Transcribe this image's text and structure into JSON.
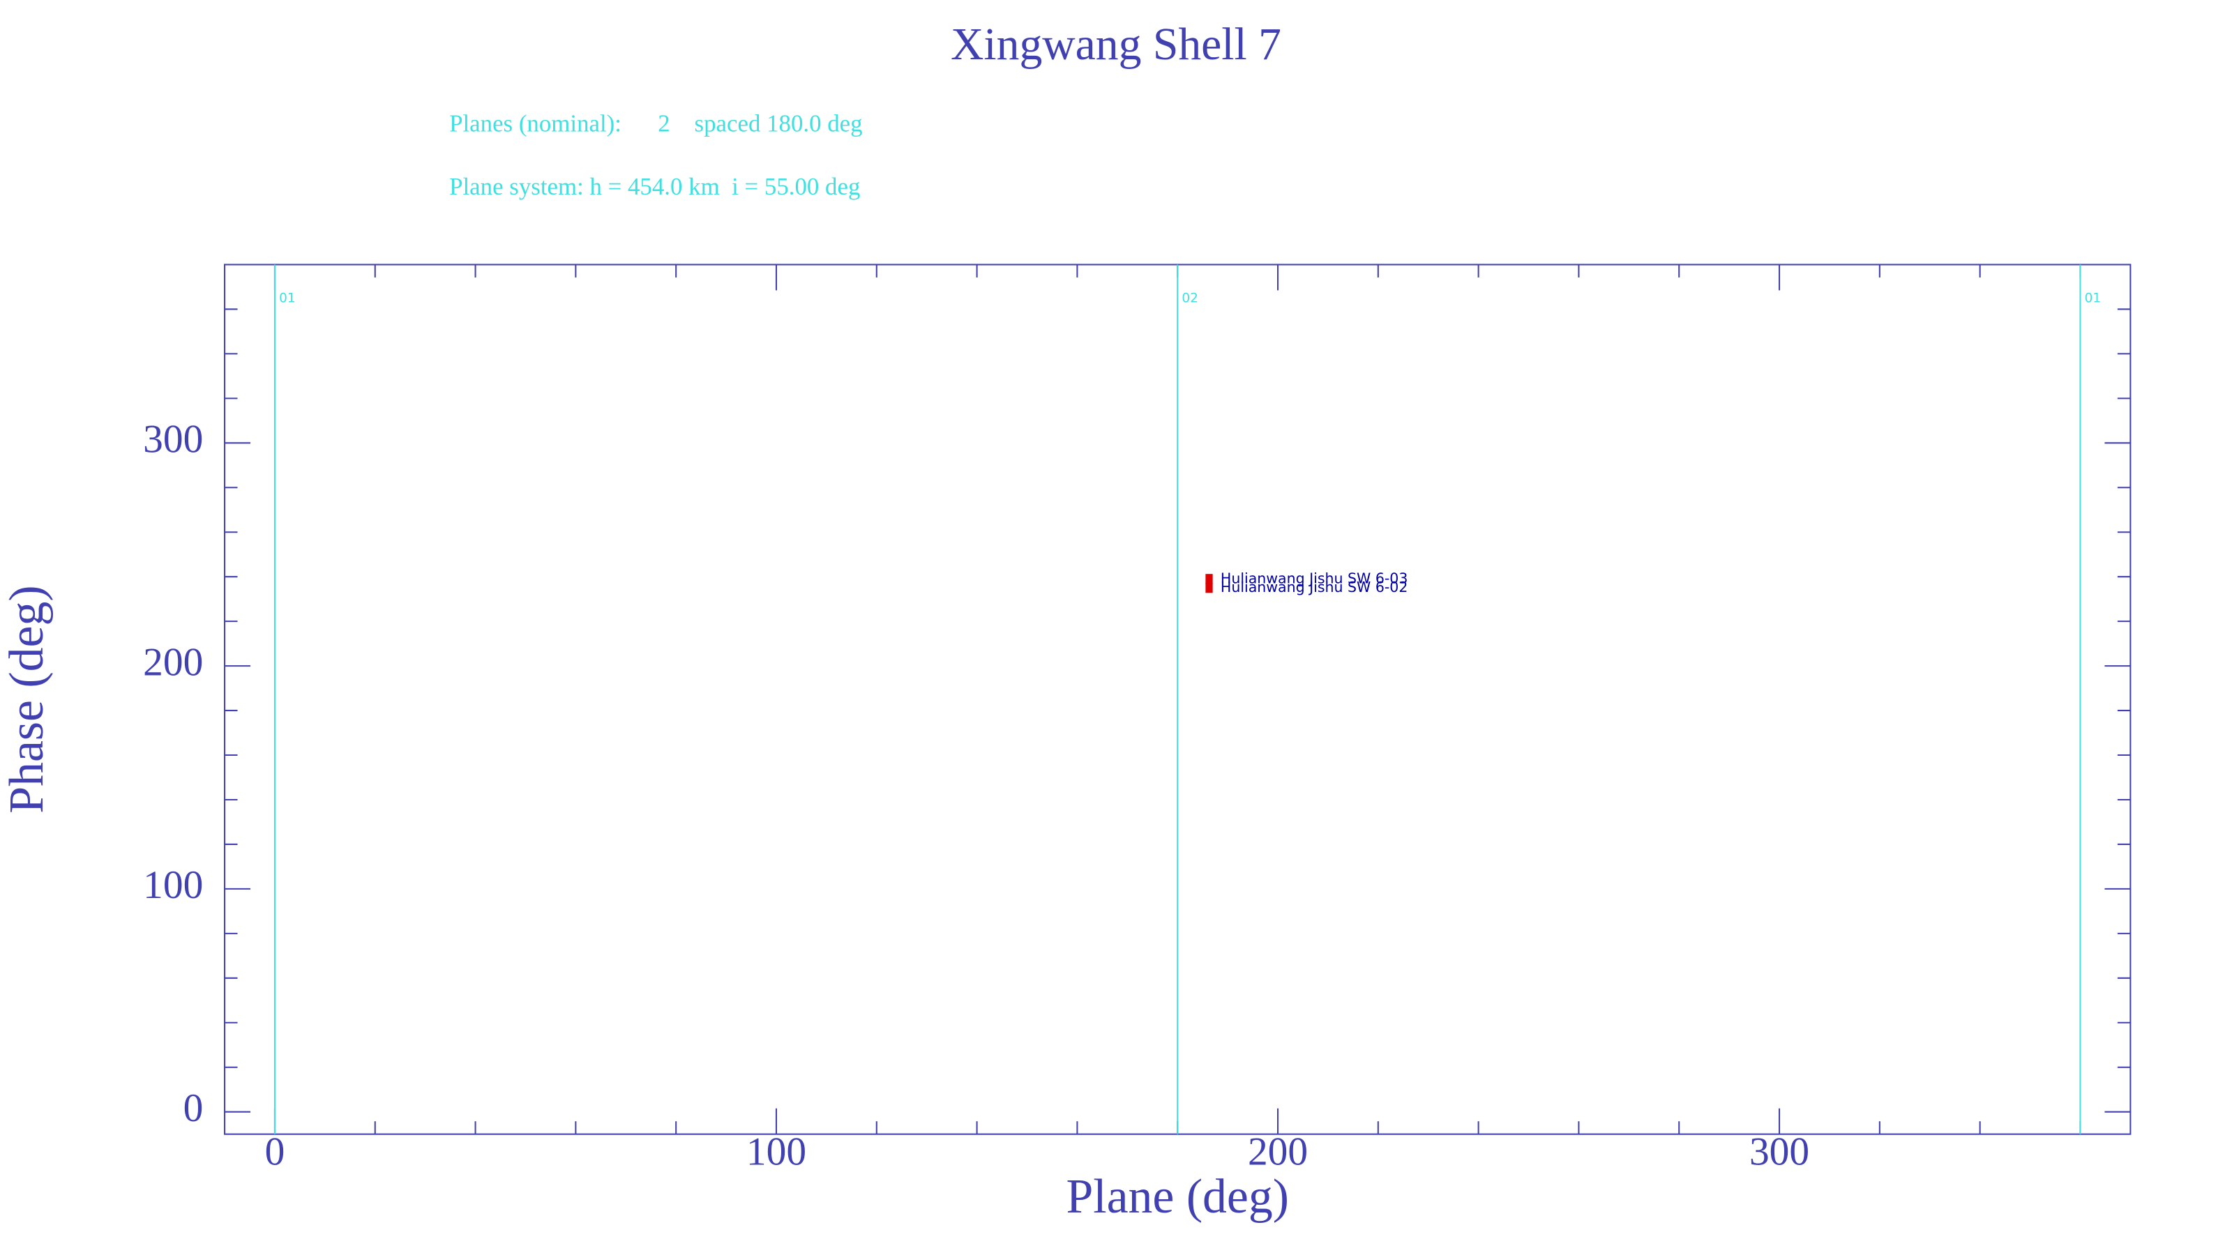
{
  "chart_data": {
    "type": "scatter",
    "title": "Xingwang Shell 7",
    "subtitle_lines": [
      "Planes (nominal):      2    spaced 180.0 deg",
      "Plane system: h = 454.0 km  i = 55.00 deg"
    ],
    "xlabel": "Plane (deg)",
    "ylabel": "Phase (deg)",
    "xlim": [
      -10,
      370
    ],
    "ylim": [
      -10,
      380
    ],
    "xticks": [
      0,
      100,
      200,
      300
    ],
    "yticks": [
      0,
      100,
      200,
      300
    ],
    "xminorticks": [
      20,
      40,
      60,
      80,
      120,
      140,
      160,
      180,
      220,
      240,
      260,
      280,
      320,
      340,
      360
    ],
    "yminorticks": [
      20,
      40,
      60,
      80,
      120,
      140,
      160,
      180,
      220,
      240,
      260,
      280,
      320,
      340,
      360
    ],
    "planes": {
      "x": [
        0,
        180,
        360
      ],
      "labels": [
        "01",
        "02",
        "01"
      ],
      "color": "#40e0e0"
    },
    "axis_color": "#4040b0",
    "subtitle_color": "#40e0e0",
    "label_color": "#0000a0",
    "series": [
      {
        "name": "Hulianwang Jishu SW 6-03",
        "color": "#e00000",
        "x": [
          186.3
        ],
        "values": [
          239
        ]
      },
      {
        "name": "Hulianwang Jishu SW 6-02",
        "color": "#e00000",
        "x": [
          186.3
        ],
        "values": [
          235
        ]
      }
    ]
  }
}
